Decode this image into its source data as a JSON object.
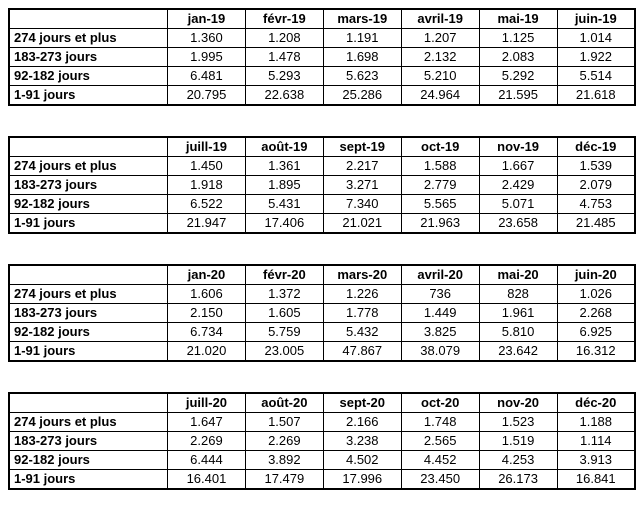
{
  "colors": {
    "background": "#ffffff",
    "border": "#000000",
    "text": "#000000"
  },
  "row_labels": [
    "274 jours et plus",
    "183-273 jours",
    "92-182 jours",
    "1-91 jours"
  ],
  "chart_data": [
    {
      "type": "table",
      "corner_label": "",
      "columns": [
        "jan-19",
        "févr-19",
        "mars-19",
        "avril-19",
        "mai-19",
        "juin-19"
      ],
      "rows": [
        {
          "label": "274 jours et plus",
          "values": [
            "1.360",
            "1.208",
            "1.191",
            "1.207",
            "1.125",
            "1.014"
          ]
        },
        {
          "label": "183-273 jours",
          "values": [
            "1.995",
            "1.478",
            "1.698",
            "2.132",
            "2.083",
            "1.922"
          ]
        },
        {
          "label": "92-182 jours",
          "values": [
            "6.481",
            "5.293",
            "5.623",
            "5.210",
            "5.292",
            "5.514"
          ]
        },
        {
          "label": "1-91 jours",
          "values": [
            "20.795",
            "22.638",
            "25.286",
            "24.964",
            "21.595",
            "21.618"
          ]
        }
      ]
    },
    {
      "type": "table",
      "corner_label": "",
      "columns": [
        "juill-19",
        "août-19",
        "sept-19",
        "oct-19",
        "nov-19",
        "déc-19"
      ],
      "rows": [
        {
          "label": "274 jours et plus",
          "values": [
            "1.450",
            "1.361",
            "2.217",
            "1.588",
            "1.667",
            "1.539"
          ]
        },
        {
          "label": "183-273 jours",
          "values": [
            "1.918",
            "1.895",
            "3.271",
            "2.779",
            "2.429",
            "2.079"
          ]
        },
        {
          "label": "92-182 jours",
          "values": [
            "6.522",
            "5.431",
            "7.340",
            "5.565",
            "5.071",
            "4.753"
          ]
        },
        {
          "label": "1-91 jours",
          "values": [
            "21.947",
            "17.406",
            "21.021",
            "21.963",
            "23.658",
            "21.485"
          ]
        }
      ]
    },
    {
      "type": "table",
      "corner_label": "",
      "columns": [
        "jan-20",
        "févr-20",
        "mars-20",
        "avril-20",
        "mai-20",
        "juin-20"
      ],
      "rows": [
        {
          "label": "274 jours et plus",
          "values": [
            "1.606",
            "1.372",
            "1.226",
            "736",
            "828",
            "1.026"
          ]
        },
        {
          "label": "183-273 jours",
          "values": [
            "2.150",
            "1.605",
            "1.778",
            "1.449",
            "1.961",
            "2.268"
          ]
        },
        {
          "label": "92-182 jours",
          "values": [
            "6.734",
            "5.759",
            "5.432",
            "3.825",
            "5.810",
            "6.925"
          ]
        },
        {
          "label": "1-91 jours",
          "values": [
            "21.020",
            "23.005",
            "47.867",
            "38.079",
            "23.642",
            "16.312"
          ]
        }
      ]
    },
    {
      "type": "table",
      "corner_label": "",
      "columns": [
        "juill-20",
        "août-20",
        "sept-20",
        "oct-20",
        "nov-20",
        "déc-20"
      ],
      "rows": [
        {
          "label": "274 jours et plus",
          "values": [
            "1.647",
            "1.507",
            "2.166",
            "1.748",
            "1.523",
            "1.188"
          ]
        },
        {
          "label": "183-273 jours",
          "values": [
            "2.269",
            "2.269",
            "3.238",
            "2.565",
            "1.519",
            "1.114"
          ]
        },
        {
          "label": "92-182 jours",
          "values": [
            "6.444",
            "3.892",
            "4.502",
            "4.452",
            "4.253",
            "3.913"
          ]
        },
        {
          "label": "1-91 jours",
          "values": [
            "16.401",
            "17.479",
            "17.996",
            "23.450",
            "26.173",
            "16.841"
          ]
        }
      ]
    }
  ]
}
